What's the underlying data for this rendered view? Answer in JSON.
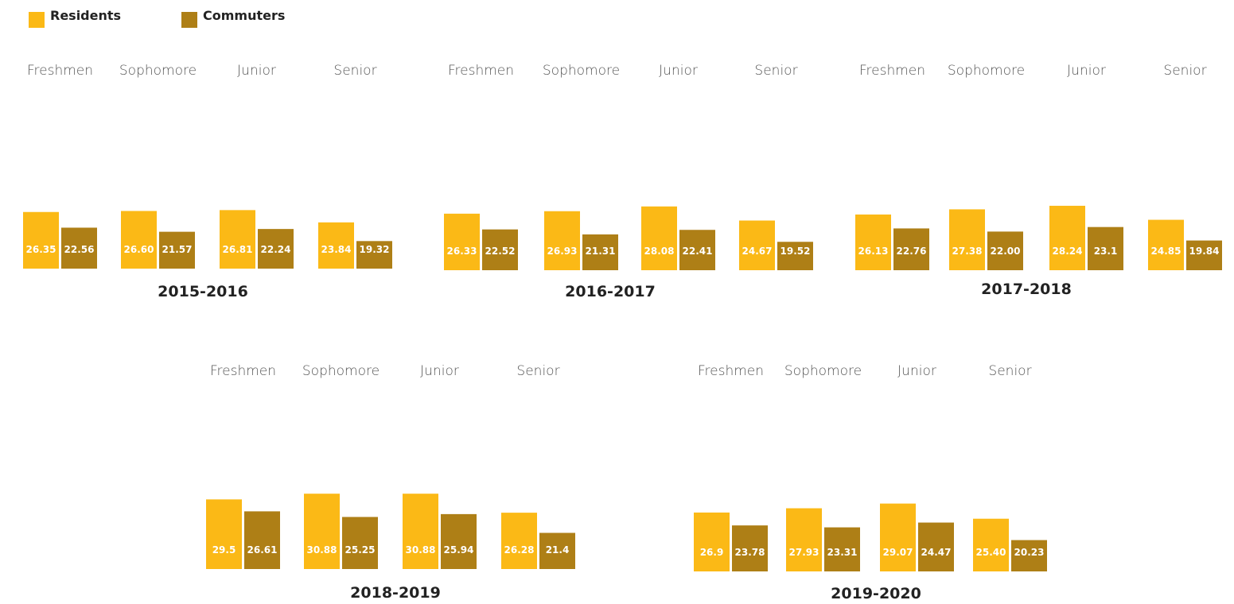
{
  "legend": {
    "residents_label": "Residents",
    "commuters_label": "Commuters"
  },
  "colors": {
    "residents": "#FBB916",
    "commuters": "#AE7F16"
  },
  "chart_data": [
    {
      "type": "bar",
      "title": "2015-2016",
      "categories": [
        "Freshmen",
        "Sophomore",
        "Junior",
        "Senior"
      ],
      "series": [
        {
          "name": "Residents",
          "values": [
            26.35,
            26.6,
            26.81,
            23.84
          ],
          "labels": [
            "26.35",
            "26.60",
            "26.81",
            "23.84"
          ]
        },
        {
          "name": "Commuters",
          "values": [
            22.56,
            21.57,
            22.24,
            19.32
          ],
          "labels": [
            "22.56",
            "21.57",
            "22.24",
            "19.32"
          ]
        }
      ]
    },
    {
      "type": "bar",
      "title": "2016-2017",
      "categories": [
        "Freshmen",
        "Sophomore",
        "Junior",
        "Senior"
      ],
      "series": [
        {
          "name": "Residents",
          "values": [
            26.33,
            26.93,
            28.08,
            24.67
          ],
          "labels": [
            "26.33",
            "26.93",
            "28.08",
            "24.67"
          ]
        },
        {
          "name": "Commuters",
          "values": [
            22.52,
            21.31,
            22.41,
            19.52
          ],
          "labels": [
            "22.52",
            "21.31",
            "22.41",
            "19.52"
          ]
        }
      ]
    },
    {
      "type": "bar",
      "title": "2017-2018",
      "categories": [
        "Freshmen",
        "Sophomore",
        "Junior",
        "Senior"
      ],
      "series": [
        {
          "name": "Residents",
          "values": [
            26.13,
            27.38,
            28.24,
            24.85
          ],
          "labels": [
            "26.13",
            "27.38",
            "28.24",
            "24.85"
          ]
        },
        {
          "name": "Commuters",
          "values": [
            22.76,
            22.0,
            23.1,
            19.84
          ],
          "labels": [
            "22.76",
            "22.00",
            "23.1",
            "19.84"
          ]
        }
      ]
    },
    {
      "type": "bar",
      "title": "2018-2019",
      "categories": [
        "Freshmen",
        "Sophomore",
        "Junior",
        "Senior"
      ],
      "series": [
        {
          "name": "Residents",
          "values": [
            29.5,
            30.88,
            30.88,
            26.28
          ],
          "labels": [
            "29.5",
            "30.88",
            "30.88",
            "26.28"
          ]
        },
        {
          "name": "Commuters",
          "values": [
            26.61,
            25.25,
            25.94,
            21.4
          ],
          "labels": [
            "26.61",
            "25.25",
            "25.94",
            "21.4"
          ]
        }
      ]
    },
    {
      "type": "bar",
      "title": "2019-2020",
      "categories": [
        "Freshmen",
        "Sophomore",
        "Junior",
        "Senior"
      ],
      "series": [
        {
          "name": "Residents",
          "values": [
            26.9,
            27.93,
            29.07,
            25.4
          ],
          "labels": [
            "26.9",
            "27.93",
            "29.07",
            "25.40"
          ]
        },
        {
          "name": "Commuters",
          "values": [
            23.78,
            23.31,
            24.47,
            20.23
          ],
          "labels": [
            "23.78",
            "23.31",
            "24.47",
            "20.23"
          ]
        }
      ]
    }
  ]
}
